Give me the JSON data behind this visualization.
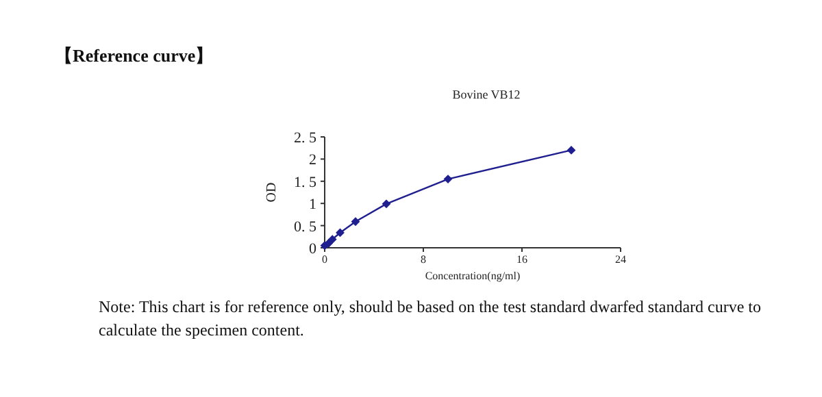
{
  "chart_data": {
    "type": "line",
    "title": "Bovine VB12",
    "xlabel": "Concentration(ng/ml)",
    "ylabel": "OD",
    "annotations": [
      "【Reference curve】",
      "Note: This chart is for reference only, should be based on the test standard dwarfed standard curve to calculate the specimen content."
    ],
    "x": [
      0,
      0.3125,
      0.625,
      1.25,
      2.5,
      5,
      10,
      20
    ],
    "series": [
      {
        "color": "#1f1f8f",
        "values": [
          0.05,
          0.1,
          0.19,
          0.34,
          0.59,
          0.99,
          1.55,
          2.2
        ]
      }
    ],
    "xlim": [
      0,
      24
    ],
    "xticks": [
      0,
      8,
      16,
      24
    ],
    "ylim": [
      0,
      2.5
    ],
    "yticks": [
      0,
      {
        "value": 0.5,
        "label": "0. 5"
      },
      1,
      {
        "value": 1.5,
        "label": "1. 5"
      },
      2,
      {
        "value": 2.5,
        "label": "2. 5"
      }
    ],
    "marker": "diamond",
    "line_style": "solid"
  }
}
